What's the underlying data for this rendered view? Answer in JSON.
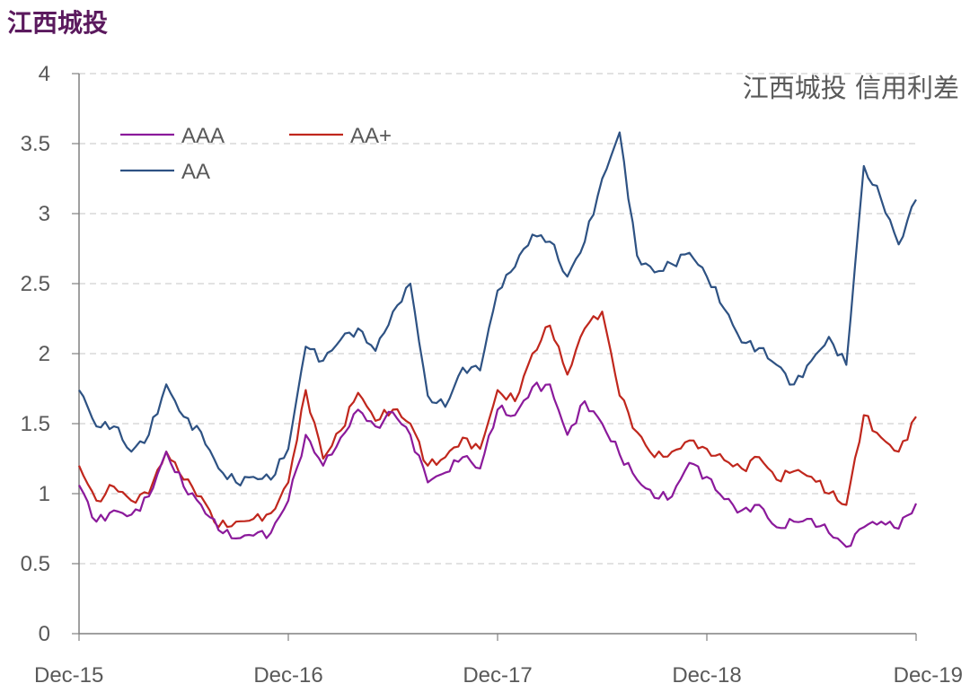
{
  "page_title": "江西城投",
  "chart_data": {
    "type": "line",
    "title": "江西城投 信用利差",
    "xlabel": "",
    "ylabel": "",
    "x_start": "2015-12",
    "x_end": "2019-12",
    "x_ticks": [
      "Dec-15",
      "Dec-16",
      "Dec-17",
      "Dec-18",
      "Dec-19"
    ],
    "y_ticks": [
      "0",
      "0.5",
      "1",
      "1.5",
      "2",
      "2.5",
      "3",
      "3.5",
      "4"
    ],
    "ylim": [
      0,
      4
    ],
    "grid": "horizontal dashed",
    "legend": "top-left",
    "series": [
      {
        "name": "AAA",
        "color": "#8b1a9b",
        "points": [
          [
            "2015-12",
            1.06
          ],
          [
            "2016-01",
            0.8
          ],
          [
            "2016-02",
            0.88
          ],
          [
            "2016-03",
            0.85
          ],
          [
            "2016-04",
            0.98
          ],
          [
            "2016-05",
            1.3
          ],
          [
            "2016-06",
            1.05
          ],
          [
            "2016-07",
            0.92
          ],
          [
            "2016-08",
            0.74
          ],
          [
            "2016-09",
            0.68
          ],
          [
            "2016-10",
            0.7
          ],
          [
            "2016-11",
            0.72
          ],
          [
            "2016-12",
            0.95
          ],
          [
            "2017-01",
            1.42
          ],
          [
            "2017-02",
            1.2
          ],
          [
            "2017-03",
            1.4
          ],
          [
            "2017-04",
            1.6
          ],
          [
            "2017-05",
            1.48
          ],
          [
            "2017-06",
            1.58
          ],
          [
            "2017-07",
            1.42
          ],
          [
            "2017-08",
            1.08
          ],
          [
            "2017-09",
            1.15
          ],
          [
            "2017-10",
            1.26
          ],
          [
            "2017-11",
            1.18
          ],
          [
            "2017-12",
            1.6
          ],
          [
            "2018-01",
            1.56
          ],
          [
            "2018-02",
            1.76
          ],
          [
            "2018-03",
            1.78
          ],
          [
            "2018-04",
            1.42
          ],
          [
            "2018-05",
            1.66
          ],
          [
            "2018-06",
            1.5
          ],
          [
            "2018-07",
            1.28
          ],
          [
            "2018-08",
            1.1
          ],
          [
            "2018-09",
            0.97
          ],
          [
            "2018-10",
            0.98
          ],
          [
            "2018-11",
            1.22
          ],
          [
            "2018-12",
            1.12
          ],
          [
            "2019-01",
            0.96
          ],
          [
            "2019-02",
            0.88
          ],
          [
            "2019-03",
            0.92
          ],
          [
            "2019-04",
            0.76
          ],
          [
            "2019-05",
            0.8
          ],
          [
            "2019-06",
            0.82
          ],
          [
            "2019-07",
            0.72
          ],
          [
            "2019-08",
            0.62
          ],
          [
            "2019-09",
            0.76
          ],
          [
            "2019-10",
            0.8
          ],
          [
            "2019-11",
            0.75
          ],
          [
            "2019-12",
            0.93
          ]
        ]
      },
      {
        "name": "AA+",
        "color": "#c0271d",
        "points": [
          [
            "2015-12",
            1.2
          ],
          [
            "2016-01",
            0.95
          ],
          [
            "2016-02",
            1.05
          ],
          [
            "2016-03",
            0.95
          ],
          [
            "2016-04",
            1.0
          ],
          [
            "2016-05",
            1.3
          ],
          [
            "2016-06",
            1.1
          ],
          [
            "2016-07",
            0.98
          ],
          [
            "2016-08",
            0.76
          ],
          [
            "2016-09",
            0.8
          ],
          [
            "2016-10",
            0.82
          ],
          [
            "2016-11",
            0.86
          ],
          [
            "2016-12",
            1.08
          ],
          [
            "2017-01",
            1.74
          ],
          [
            "2017-02",
            1.25
          ],
          [
            "2017-03",
            1.45
          ],
          [
            "2017-04",
            1.72
          ],
          [
            "2017-05",
            1.52
          ],
          [
            "2017-06",
            1.6
          ],
          [
            "2017-07",
            1.5
          ],
          [
            "2017-08",
            1.2
          ],
          [
            "2017-09",
            1.26
          ],
          [
            "2017-10",
            1.4
          ],
          [
            "2017-11",
            1.32
          ],
          [
            "2017-12",
            1.74
          ],
          [
            "2018-01",
            1.66
          ],
          [
            "2018-02",
            2.0
          ],
          [
            "2018-03",
            2.2
          ],
          [
            "2018-04",
            1.85
          ],
          [
            "2018-05",
            2.18
          ],
          [
            "2018-06",
            2.3
          ],
          [
            "2018-07",
            1.7
          ],
          [
            "2018-08",
            1.44
          ],
          [
            "2018-09",
            1.26
          ],
          [
            "2018-10",
            1.3
          ],
          [
            "2018-11",
            1.38
          ],
          [
            "2018-12",
            1.32
          ],
          [
            "2019-01",
            1.24
          ],
          [
            "2019-02",
            1.18
          ],
          [
            "2019-03",
            1.26
          ],
          [
            "2019-04",
            1.1
          ],
          [
            "2019-05",
            1.16
          ],
          [
            "2019-06",
            1.12
          ],
          [
            "2019-07",
            1.0
          ],
          [
            "2019-08",
            0.92
          ],
          [
            "2019-09",
            1.56
          ],
          [
            "2019-10",
            1.4
          ],
          [
            "2019-11",
            1.3
          ],
          [
            "2019-12",
            1.55
          ]
        ]
      },
      {
        "name": "AA",
        "color": "#2e5283",
        "points": [
          [
            "2015-12",
            1.74
          ],
          [
            "2016-01",
            1.48
          ],
          [
            "2016-02",
            1.48
          ],
          [
            "2016-03",
            1.3
          ],
          [
            "2016-04",
            1.42
          ],
          [
            "2016-05",
            1.78
          ],
          [
            "2016-06",
            1.55
          ],
          [
            "2016-07",
            1.44
          ],
          [
            "2016-08",
            1.18
          ],
          [
            "2016-09",
            1.08
          ],
          [
            "2016-10",
            1.12
          ],
          [
            "2016-11",
            1.1
          ],
          [
            "2016-12",
            1.32
          ],
          [
            "2017-01",
            2.05
          ],
          [
            "2017-02",
            1.95
          ],
          [
            "2017-03",
            2.1
          ],
          [
            "2017-04",
            2.18
          ],
          [
            "2017-05",
            2.02
          ],
          [
            "2017-06",
            2.3
          ],
          [
            "2017-07",
            2.5
          ],
          [
            "2017-08",
            1.7
          ],
          [
            "2017-09",
            1.62
          ],
          [
            "2017-10",
            1.9
          ],
          [
            "2017-11",
            1.88
          ],
          [
            "2017-12",
            2.45
          ],
          [
            "2018-01",
            2.62
          ],
          [
            "2018-02",
            2.85
          ],
          [
            "2018-03",
            2.8
          ],
          [
            "2018-04",
            2.55
          ],
          [
            "2018-05",
            2.8
          ],
          [
            "2018-06",
            3.25
          ],
          [
            "2018-07",
            3.58
          ],
          [
            "2018-08",
            2.7
          ],
          [
            "2018-09",
            2.58
          ],
          [
            "2018-10",
            2.64
          ],
          [
            "2018-11",
            2.72
          ],
          [
            "2018-12",
            2.55
          ],
          [
            "2019-01",
            2.32
          ],
          [
            "2019-02",
            2.08
          ],
          [
            "2019-03",
            2.04
          ],
          [
            "2019-04",
            1.92
          ],
          [
            "2019-05",
            1.78
          ],
          [
            "2019-06",
            1.95
          ],
          [
            "2019-07",
            2.12
          ],
          [
            "2019-08",
            1.92
          ],
          [
            "2019-09",
            3.34
          ],
          [
            "2019-10",
            3.1
          ],
          [
            "2019-11",
            2.78
          ],
          [
            "2019-12",
            3.1
          ]
        ]
      }
    ]
  }
}
